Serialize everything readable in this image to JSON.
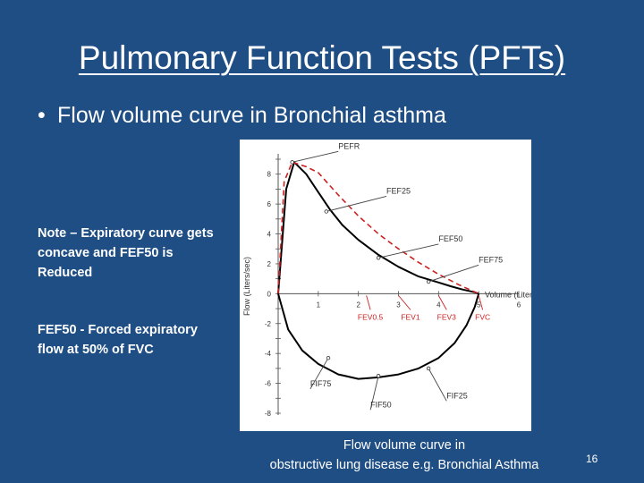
{
  "slide": {
    "title": "Pulmonary Function Tests (PFTs)",
    "bullet": "Flow volume curve in Bronchial asthma",
    "note1": "Note – Expiratory curve gets concave and FEF50 is Reduced",
    "note2": "FEF50 - Forced expiratory flow at 50% of FVC",
    "caption_line1": "Flow volume curve in",
    "caption_line2": "obstructive lung disease e.g. Bronchial Asthma",
    "page_number": "16"
  },
  "chart_data": {
    "type": "line",
    "xlabel": "Volume (Liters)",
    "ylabel": "Flow (Liters/sec)",
    "xlim": [
      0,
      6
    ],
    "ylim": [
      -8,
      9
    ],
    "x_ticks": [
      1,
      2,
      3,
      4,
      5,
      6
    ],
    "y_ticks": [
      8,
      6,
      4,
      2,
      0,
      -2,
      -4,
      -6,
      -8
    ],
    "grid": false,
    "colors": {
      "obstructive": "#000000",
      "normal": "#cc2222",
      "label": "#333333",
      "fev_label": "#cc2222"
    },
    "series": [
      {
        "style": "solid",
        "x": [
          0,
          0.2,
          0.4,
          0.7,
          1.0,
          1.3,
          1.6,
          2.0,
          2.5,
          3.0,
          3.5,
          4.0,
          4.3,
          4.6,
          4.9,
          5.0
        ],
        "y": [
          0,
          7.0,
          8.8,
          8.0,
          6.8,
          5.6,
          4.6,
          3.6,
          2.6,
          1.8,
          1.15,
          0.75,
          0.5,
          0.28,
          0.1,
          0
        ]
      },
      {
        "style": "dashed",
        "x": [
          0,
          0.15,
          0.35,
          0.7,
          1.0,
          1.5,
          2.0,
          2.5,
          3.0,
          3.5,
          4.0,
          4.5,
          5.0
        ],
        "y": [
          0,
          7.5,
          8.8,
          8.5,
          8.1,
          6.6,
          5.2,
          4.0,
          3.0,
          2.1,
          1.3,
          0.6,
          0
        ]
      },
      {
        "style": "solid",
        "x": [
          0,
          0.25,
          0.6,
          1.0,
          1.5,
          2.0,
          2.5,
          3.0,
          3.5,
          4.0,
          4.4,
          4.7,
          4.9,
          5.0
        ],
        "y": [
          0,
          -2.4,
          -3.8,
          -4.7,
          -5.4,
          -5.7,
          -5.6,
          -5.4,
          -5.0,
          -4.3,
          -3.3,
          -2.1,
          -0.9,
          0
        ]
      }
    ],
    "annotations": [
      {
        "label": "PEFR",
        "x": 0.35,
        "y": 8.8,
        "tx": 1.5,
        "ty": 9.7
      },
      {
        "label": "FEF25",
        "x": 1.2,
        "y": 5.5,
        "tx": 2.7,
        "ty": 6.7
      },
      {
        "label": "FEF50",
        "x": 2.5,
        "y": 2.4,
        "tx": 4.0,
        "ty": 3.5
      },
      {
        "label": "FEF75",
        "x": 3.75,
        "y": 0.8,
        "tx": 5.0,
        "ty": 2.1
      },
      {
        "label": "FIF75",
        "x": 1.25,
        "y": -4.3,
        "tx": 0.8,
        "ty": -6.2
      },
      {
        "label": "FIF50",
        "x": 2.5,
        "y": -5.5,
        "tx": 2.3,
        "ty": -7.6
      },
      {
        "label": "FIF25",
        "x": 3.75,
        "y": -5.0,
        "tx": 4.2,
        "ty": -7.0
      }
    ],
    "fev_markers": [
      {
        "label": "FEV0.5",
        "x": 2.2,
        "tx": 2.3
      },
      {
        "label": "FEV1",
        "x": 3.0,
        "tx": 3.3
      },
      {
        "label": "FEV3",
        "x": 4.0,
        "tx": 4.2
      },
      {
        "label": "FVC",
        "x": 5.0,
        "tx": 5.1
      }
    ]
  }
}
